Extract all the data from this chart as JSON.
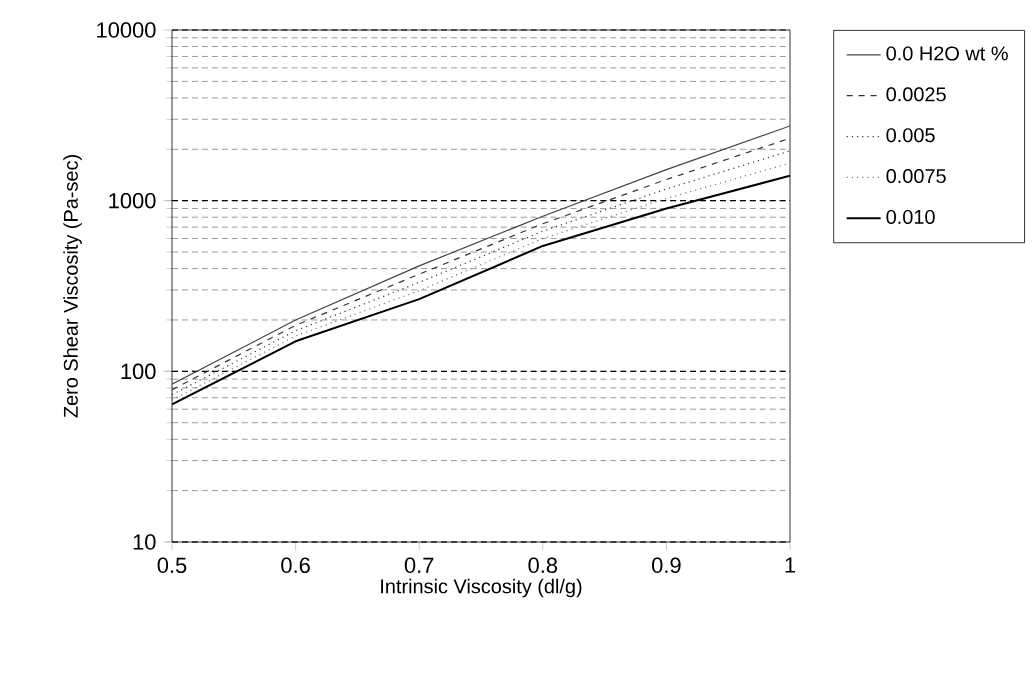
{
  "chart_data": {
    "type": "line",
    "xlabel": "Intrinsic Viscosity (dl/g)",
    "ylabel": "Zero Shear Viscosity (Pa-sec)",
    "x": [
      0.5,
      0.6,
      0.7,
      0.8,
      0.9,
      1.0
    ],
    "series": [
      {
        "name": "0.0 H2O wt %",
        "color": "#444444",
        "line_style": "solid",
        "values": [
          84,
          200,
          415,
          810,
          1520,
          2740
        ]
      },
      {
        "name": "0.0025",
        "color": "#333333",
        "line_style": "dashed",
        "values": [
          78,
          186,
          371,
          733,
          1330,
          2320
        ]
      },
      {
        "name": "0.005",
        "color": "#333333",
        "line_style": "dotted",
        "values": [
          73,
          173,
          332,
          663,
          1170,
          1960
        ]
      },
      {
        "name": "0.0075",
        "color": "#777777",
        "line_style": "dotted",
        "values": [
          68,
          161,
          297,
          600,
          1030,
          1660
        ]
      },
      {
        "name": "0.010",
        "color": "#000000",
        "line_style": "solid",
        "values": [
          64,
          150,
          265,
          543,
          900,
          1400
        ]
      }
    ],
    "xlim": [
      0.5,
      1
    ],
    "xticks": [
      0.5,
      0.6,
      0.7,
      0.8,
      0.9,
      {
        "value": 1,
        "label": "1"
      }
    ],
    "ylim": [
      10,
      10000
    ],
    "yticks": [
      10,
      100,
      1000,
      10000
    ],
    "log": "y",
    "grid": "y",
    "legend": "right",
    "marker": "none"
  }
}
